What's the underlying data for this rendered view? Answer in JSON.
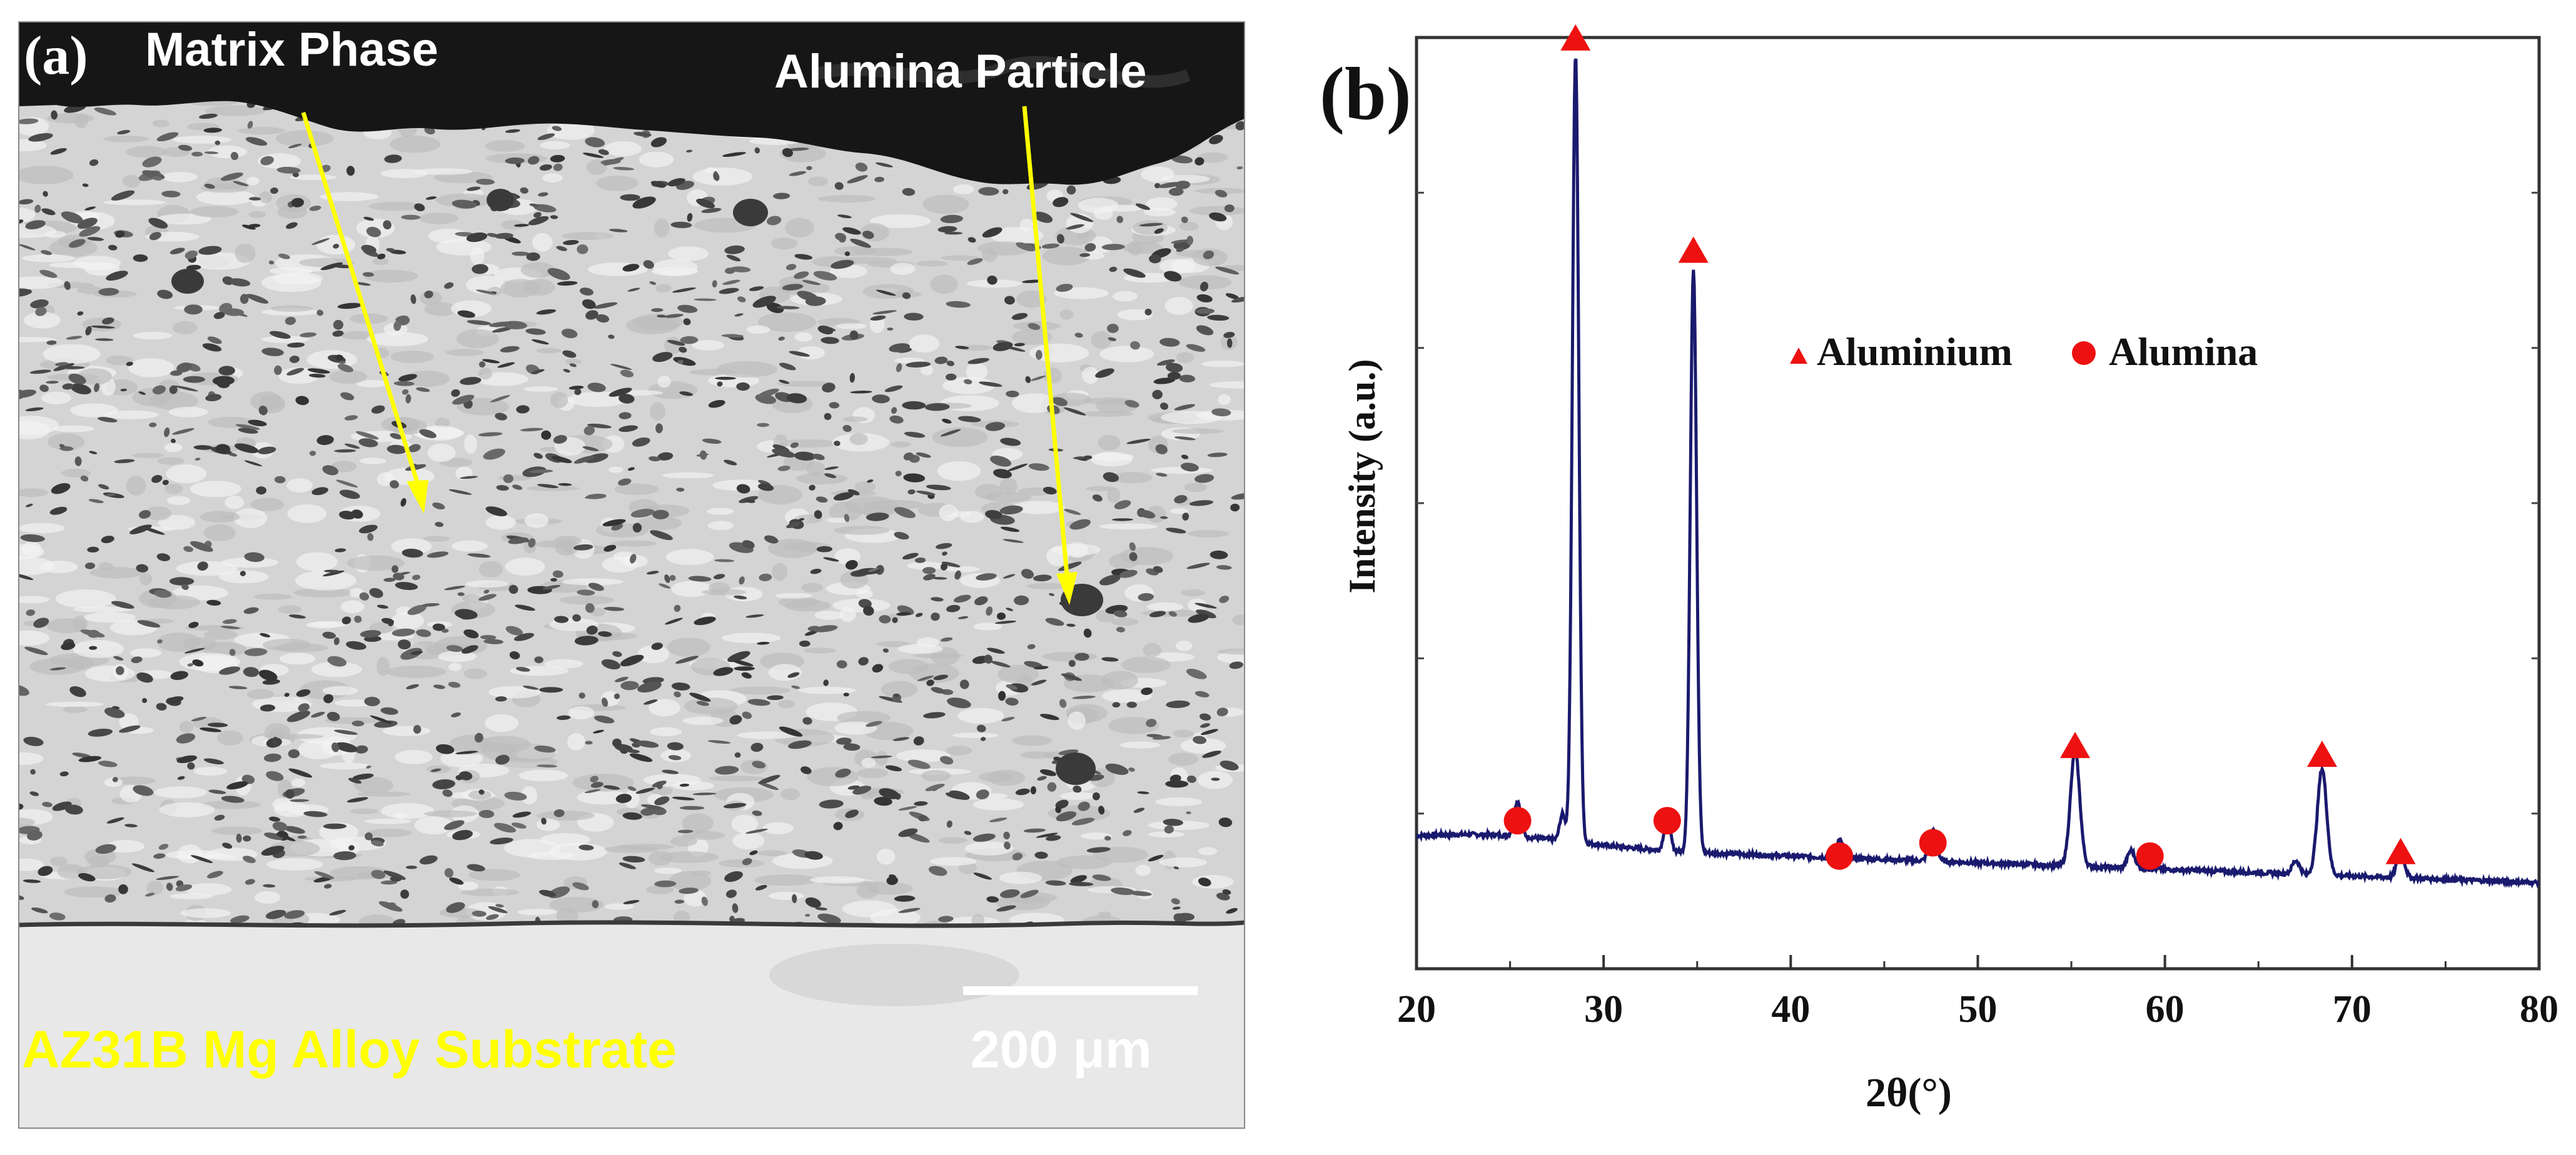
{
  "panel_a": {
    "label": "(a)",
    "annotations": {
      "matrix": "Matrix Phase",
      "alumina": "Alumina Particle",
      "substrate": "AZ31B Mg Alloy Substrate"
    },
    "scale_bar_label": "200 μm",
    "colors": {
      "annotation": "#ffff00",
      "label_text": "#ffffff",
      "coating": "#d2d2d2",
      "substrate": "#e6e6e6",
      "top_dark": "#141414"
    }
  },
  "panel_b": {
    "label": "(b)",
    "colors": {
      "line": "#1a1a6e",
      "marker": "#ee1111"
    }
  },
  "chart_data": {
    "type": "line",
    "title": "",
    "xlabel": "2θ(°)",
    "ylabel": "Intensity (a.u.)",
    "xlim": [
      20,
      80
    ],
    "ylim": [
      0,
      100
    ],
    "xticks": [
      20,
      30,
      40,
      50,
      60,
      70,
      80
    ],
    "legend": [
      {
        "marker": "triangle",
        "label": "Aluminium"
      },
      {
        "marker": "circle",
        "label": "Alumina"
      }
    ],
    "series": [
      {
        "name": "XRD pattern",
        "baseline_start": 10,
        "baseline_end": 5.5,
        "peaks": [
          {
            "x": 25.4,
            "height": 4,
            "width": 0.18
          },
          {
            "x": 27.8,
            "height": 3,
            "width": 0.15
          },
          {
            "x": 28.5,
            "height": 89,
            "width": 0.17
          },
          {
            "x": 33.4,
            "height": 4,
            "width": 0.16
          },
          {
            "x": 34.8,
            "height": 66,
            "width": 0.17
          },
          {
            "x": 42.6,
            "height": 2,
            "width": 0.2
          },
          {
            "x": 47.6,
            "height": 3.5,
            "width": 0.2
          },
          {
            "x": 55.2,
            "height": 13,
            "width": 0.25
          },
          {
            "x": 58.2,
            "height": 2,
            "width": 0.2
          },
          {
            "x": 67.0,
            "height": 1.5,
            "width": 0.2
          },
          {
            "x": 68.4,
            "height": 12,
            "width": 0.25
          },
          {
            "x": 72.6,
            "height": 3,
            "width": 0.2
          }
        ]
      }
    ],
    "peak_markers": [
      {
        "x": 25.4,
        "y": 12.5,
        "phase": "Alumina"
      },
      {
        "x": 28.5,
        "y": 101,
        "phase": "Aluminium"
      },
      {
        "x": 33.4,
        "y": 12.5,
        "phase": "Alumina"
      },
      {
        "x": 34.8,
        "y": 77,
        "phase": "Aluminium"
      },
      {
        "x": 42.6,
        "y": 8.5,
        "phase": "Alumina"
      },
      {
        "x": 47.6,
        "y": 10,
        "phase": "Alumina"
      },
      {
        "x": 55.2,
        "y": 21,
        "phase": "Aluminium"
      },
      {
        "x": 59.2,
        "y": 8.5,
        "phase": "Alumina"
      },
      {
        "x": 68.4,
        "y": 20,
        "phase": "Aluminium"
      },
      {
        "x": 72.6,
        "y": 9,
        "phase": "Aluminium"
      }
    ]
  }
}
